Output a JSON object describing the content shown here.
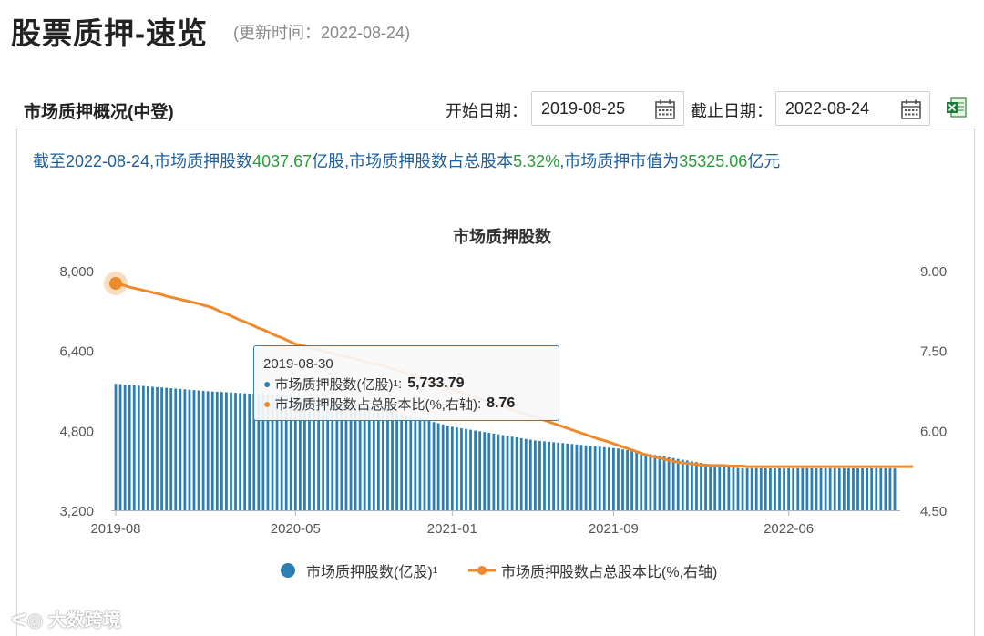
{
  "header": {
    "title": "股票质押-速览",
    "update_time": "(更新时间：2022-08-24)"
  },
  "section": {
    "title": "市场质押概况(中登)",
    "start_label": "开始日期：",
    "start_value": "2019-08-25",
    "end_label": "截止日期：",
    "end_value": "2022-08-24"
  },
  "summary": {
    "p1": "截至2022-08-24,市场质押股数",
    "v1": "4037.67",
    "p2": "亿股,市场质押股数占总股本",
    "v2": "5.32%",
    "p3": ",市场质押市值为",
    "v3": "35325.06",
    "p4": "亿元"
  },
  "tooltip": {
    "date": "2019-08-30",
    "s1_label": "市场质押股数(亿股)",
    "s1_sup": "1",
    "s1_value": "5,733.79",
    "s2_label": "市场质押股数占总股本比(%,右轴)",
    "s2_value": "8.76"
  },
  "legend": {
    "bar_label": "市场质押股数(亿股)",
    "bar_sup": "1",
    "line_label": "市场质押股数占总股本比(%,右轴)"
  },
  "watermark": "大数跨境",
  "colors": {
    "bar": "#2b7fb3",
    "line": "#ee8a2c",
    "summary_text": "#1f5f9a",
    "summary_number": "#2a9d3a"
  },
  "chart_data": {
    "type": "bar",
    "title": "市场质押股数",
    "x_ticks": [
      "2019-08",
      "2020-05",
      "2021-01",
      "2021-09",
      "2022-06"
    ],
    "x_tick_index": [
      0,
      39,
      73,
      108,
      146
    ],
    "y_left_ticks": [
      "3,200",
      "4,800",
      "6,400",
      "8,000"
    ],
    "y_left_range": [
      3200,
      8000
    ],
    "y_right_ticks": [
      "4.50",
      "6.00",
      "7.50",
      "9.00"
    ],
    "y_right_range": [
      4.5,
      9.0
    ],
    "grid": false,
    "legend_position": "bottom",
    "series": [
      {
        "name": "市场质押股数(亿股)",
        "type": "bar",
        "axis": "left",
        "values": [
          5734,
          5727,
          5719,
          5711,
          5704,
          5696,
          5689,
          5681,
          5674,
          5666,
          5659,
          5652,
          5644,
          5637,
          5629,
          5622,
          5614,
          5607,
          5599,
          5592,
          5584,
          5579,
          5574,
          5569,
          5564,
          5559,
          5553,
          5548,
          5543,
          5538,
          5533,
          5528,
          5523,
          5518,
          5513,
          5508,
          5503,
          5498,
          5493,
          5488,
          5474,
          5459,
          5445,
          5431,
          5416,
          5402,
          5388,
          5374,
          5359,
          5345,
          5331,
          5316,
          5302,
          5288,
          5274,
          5259,
          5245,
          5231,
          5216,
          5202,
          5178,
          5155,
          5131,
          5108,
          5084,
          5060,
          5037,
          5013,
          4990,
          4966,
          4943,
          4919,
          4895,
          4873,
          4858,
          4842,
          4827,
          4812,
          4796,
          4781,
          4766,
          4750,
          4735,
          4720,
          4705,
          4689,
          4674,
          4659,
          4643,
          4628,
          4613,
          4598,
          4589,
          4580,
          4571,
          4562,
          4554,
          4545,
          4536,
          4527,
          4518,
          4509,
          4500,
          4491,
          4482,
          4473,
          4464,
          4455,
          4446,
          4436,
          4420,
          4404,
          4388,
          4372,
          4356,
          4340,
          4324,
          4308,
          4292,
          4276,
          4260,
          4244,
          4228,
          4212,
          4196,
          4180,
          4164,
          4148,
          4132,
          4116,
          4100,
          4090,
          4080,
          4070,
          4060,
          4050,
          4040,
          4040,
          4040,
          4040,
          4040,
          4040,
          4040,
          4040,
          4040,
          4040,
          4040,
          4040,
          4040,
          4040,
          4040,
          4040,
          4040,
          4040,
          4040,
          4040,
          4040,
          4040,
          4040,
          4040,
          4040,
          4040,
          4040,
          4040,
          4040,
          4040,
          4040,
          4040,
          4040,
          4038
        ]
      },
      {
        "name": "市场质押股数占总股本比(%,右轴)",
        "type": "line",
        "axis": "right",
        "values": [
          8.76,
          8.74,
          8.72,
          8.69,
          8.67,
          8.65,
          8.63,
          8.61,
          8.59,
          8.57,
          8.55,
          8.52,
          8.5,
          8.48,
          8.46,
          8.44,
          8.42,
          8.4,
          8.38,
          8.35,
          8.33,
          8.3,
          8.26,
          8.22,
          8.19,
          8.15,
          8.11,
          8.07,
          8.04,
          8.0,
          7.96,
          7.92,
          7.89,
          7.85,
          7.81,
          7.77,
          7.74,
          7.7,
          7.66,
          7.62,
          7.6,
          7.58,
          7.55,
          7.53,
          7.51,
          7.49,
          7.47,
          7.45,
          7.42,
          7.4,
          7.38,
          7.36,
          7.34,
          7.32,
          7.29,
          7.27,
          7.25,
          7.23,
          7.21,
          7.19,
          7.16,
          7.13,
          7.1,
          7.07,
          7.04,
          7.01,
          6.98,
          6.95,
          6.92,
          6.89,
          6.86,
          6.83,
          6.8,
          6.77,
          6.74,
          6.71,
          6.69,
          6.66,
          6.63,
          6.6,
          6.57,
          6.54,
          6.51,
          6.48,
          6.45,
          6.42,
          6.39,
          6.36,
          6.33,
          6.3,
          6.27,
          6.25,
          6.22,
          6.19,
          6.16,
          6.13,
          6.1,
          6.07,
          6.04,
          6.01,
          5.98,
          5.95,
          5.92,
          5.89,
          5.86,
          5.83,
          5.81,
          5.78,
          5.75,
          5.72,
          5.69,
          5.66,
          5.63,
          5.6,
          5.57,
          5.54,
          5.52,
          5.5,
          5.48,
          5.46,
          5.44,
          5.42,
          5.4,
          5.39,
          5.38,
          5.37,
          5.36,
          5.35,
          5.35,
          5.34,
          5.34,
          5.34,
          5.34,
          5.33,
          5.33,
          5.33,
          5.33,
          5.32,
          5.32,
          5.32,
          5.32,
          5.32,
          5.32,
          5.32,
          5.32,
          5.32,
          5.32,
          5.32,
          5.32,
          5.32,
          5.32,
          5.32,
          5.32,
          5.32,
          5.32,
          5.32,
          5.32,
          5.32,
          5.32,
          5.32,
          5.32,
          5.32,
          5.32,
          5.32,
          5.32,
          5.32,
          5.32,
          5.32,
          5.32,
          5.32,
          5.32,
          5.32,
          5.32,
          5.32
        ]
      }
    ]
  }
}
